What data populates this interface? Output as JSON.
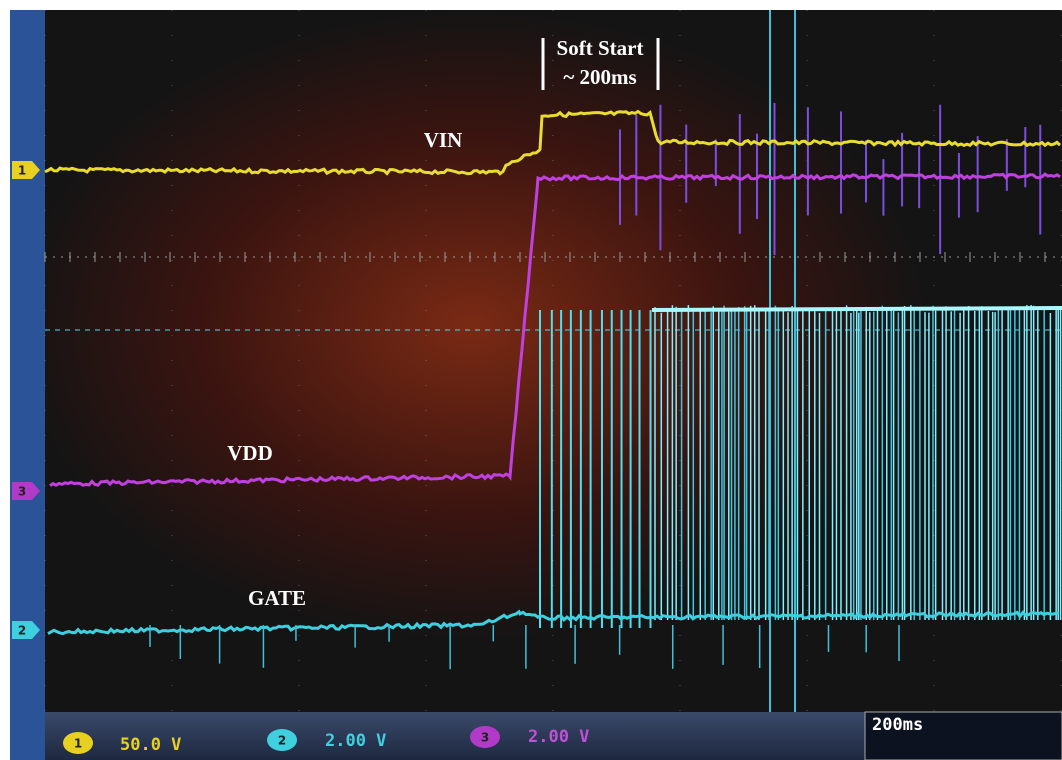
{
  "annotations": {
    "soft_start": "Soft Start",
    "duration": "~ 200ms"
  },
  "traces": [
    {
      "label": "VIN",
      "channel": "1"
    },
    {
      "label": "VDD",
      "channel": "3"
    },
    {
      "label": "GATE",
      "channel": "2"
    }
  ],
  "status_bar": {
    "channels": [
      {
        "channel": "1",
        "scale": "50.0 V"
      },
      {
        "channel": "2",
        "scale": "2.00 V"
      },
      {
        "channel": "3",
        "scale": "2.00 V"
      }
    ],
    "timebase": "200ms"
  }
}
